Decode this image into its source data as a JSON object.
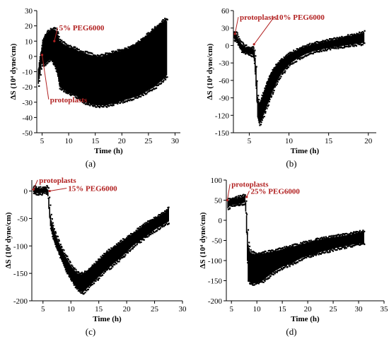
{
  "chart_data": [
    {
      "type": "scatter",
      "panel_label": "(a)",
      "xlabel": "Time (h)",
      "ylabel": "ΔS (10⁴ dyne/cm)",
      "xlim": [
        4,
        31
      ],
      "ylim": [
        -50,
        30
      ],
      "xticks": [
        5,
        10,
        15,
        20,
        25,
        30
      ],
      "yticks": [
        -50,
        -40,
        -30,
        -20,
        -10,
        0,
        10,
        20,
        30
      ],
      "grid": false,
      "color": "#000000",
      "annotations": [
        {
          "text": "5% PEG6000",
          "x": 8.2,
          "y": 17,
          "arrow_to": [
            7.3,
            10
          ]
        },
        {
          "text": "protoplasts",
          "x": 6.5,
          "y": -30,
          "arrow_to": [
            5.0,
            1
          ]
        }
      ],
      "x": [
        4.2,
        4.5,
        4.8,
        5.0,
        5.5,
        6.0,
        6.5,
        7.0,
        7.5,
        7.8,
        8.2,
        9,
        10,
        11,
        12,
        13,
        14,
        15,
        16,
        17,
        18,
        19,
        20,
        21,
        22,
        23,
        24,
        25,
        26,
        27,
        28,
        28.4
      ],
      "y_upper": [
        -8,
        0,
        5,
        10,
        14,
        16,
        17,
        18,
        17,
        15,
        10,
        8,
        6,
        5,
        3,
        2,
        1,
        0,
        0,
        1,
        2,
        3,
        4,
        5,
        7,
        9,
        12,
        15,
        18,
        21,
        24,
        23
      ],
      "y_lower": [
        -18,
        -12,
        -5,
        -5,
        -5,
        -3,
        -2,
        -4,
        -8,
        -12,
        -20,
        -22,
        -24,
        -25,
        -28,
        -30,
        -31,
        -32,
        -32,
        -32,
        -31,
        -30,
        -29,
        -28,
        -27,
        -26,
        -24,
        -22,
        -20,
        -17,
        -14,
        -12
      ]
    },
    {
      "type": "scatter",
      "panel_label": "(b)",
      "xlabel": "Time (h)",
      "ylabel": "ΔS (10⁴ dyne/cm)",
      "xlim": [
        3,
        21
      ],
      "ylim": [
        -150,
        60
      ],
      "xticks": [
        5,
        10,
        15,
        20
      ],
      "yticks": [
        -150,
        -120,
        -90,
        -60,
        -30,
        0,
        30,
        60
      ],
      "grid": false,
      "color": "#000000",
      "annotations": [
        {
          "text": "protoplasts",
          "x": 3.8,
          "y": 44,
          "arrow_to": [
            3.2,
            20
          ]
        },
        {
          "text": "10% PEG6000",
          "x": 8.3,
          "y": 44,
          "arrow_to": [
            5.6,
            2
          ]
        }
      ],
      "x": [
        3.0,
        3.3,
        3.6,
        4.0,
        4.5,
        5.0,
        5.4,
        5.6,
        5.8,
        6.0,
        6.2,
        6.5,
        7.0,
        7.5,
        8.0,
        8.5,
        9,
        10,
        11,
        12,
        13,
        14,
        15,
        16,
        17,
        18,
        19,
        19.4
      ],
      "y_upper": [
        22,
        20,
        10,
        2,
        -3,
        -5,
        -5,
        -10,
        -40,
        -90,
        -100,
        -90,
        -70,
        -52,
        -40,
        -32,
        -25,
        -15,
        -8,
        -2,
        2,
        5,
        8,
        11,
        14,
        17,
        20,
        22
      ],
      "y_lower": [
        12,
        8,
        0,
        -10,
        -12,
        -15,
        -16,
        -30,
        -75,
        -125,
        -135,
        -128,
        -110,
        -92,
        -75,
        -60,
        -48,
        -32,
        -22,
        -15,
        -10,
        -7,
        -4,
        -2,
        0,
        2,
        4,
        5
      ]
    },
    {
      "type": "scatter",
      "panel_label": "(c)",
      "xlabel": "Time (h)",
      "ylabel": "ΔS (10⁴ dyne/cm)",
      "xlim": [
        3,
        30
      ],
      "ylim": [
        -200,
        20
      ],
      "xticks": [
        5,
        10,
        15,
        20,
        25,
        30
      ],
      "yticks": [
        -200,
        -150,
        -100,
        -50,
        0
      ],
      "grid": false,
      "color": "#000000",
      "annotations": [
        {
          "text": "protoplasts",
          "x": 4.3,
          "y": 15,
          "arrow_to": [
            3.3,
            3
          ]
        },
        {
          "text": "15% PEG6000",
          "x": 9.5,
          "y": 0,
          "arrow_to": [
            6.2,
            0
          ]
        }
      ],
      "x": [
        3.2,
        3.5,
        4,
        4.5,
        5,
        5.5,
        5.8,
        6.0,
        6.3,
        6.7,
        7,
        8,
        9,
        10,
        11,
        12,
        13,
        14,
        15,
        16,
        17,
        18,
        19,
        20,
        21,
        22,
        23,
        24,
        25,
        26,
        27,
        27.5
      ],
      "y_upper": [
        8,
        5,
        4,
        4,
        5,
        6,
        2,
        -20,
        -50,
        -65,
        -75,
        -100,
        -120,
        -138,
        -150,
        -152,
        -145,
        -135,
        -125,
        -115,
        -107,
        -100,
        -92,
        -85,
        -78,
        -70,
        -62,
        -56,
        -50,
        -44,
        -37,
        -30
      ],
      "y_lower": [
        -2,
        -4,
        -4,
        -4,
        -2,
        -2,
        -10,
        -40,
        -70,
        -85,
        -95,
        -120,
        -145,
        -162,
        -178,
        -185,
        -175,
        -165,
        -155,
        -145,
        -137,
        -128,
        -120,
        -110,
        -100,
        -92,
        -85,
        -78,
        -70,
        -64,
        -58,
        -55
      ]
    },
    {
      "type": "scatter",
      "panel_label": "(d)",
      "xlabel": "Time (h)",
      "ylabel": "ΔS (10⁴ dyne/cm)",
      "xlim": [
        4,
        35
      ],
      "ylim": [
        -200,
        100
      ],
      "xticks": [
        5,
        10,
        15,
        20,
        25,
        30,
        35
      ],
      "yticks": [
        -200,
        -150,
        -100,
        -50,
        0,
        50,
        100
      ],
      "grid": false,
      "color": "#000000",
      "annotations": [
        {
          "text": "protoplasts",
          "x": 5.0,
          "y": 83,
          "arrow_to": [
            4.2,
            50
          ]
        },
        {
          "text": "25% PEG6000",
          "x": 8.8,
          "y": 66,
          "arrow_to": [
            8.0,
            58
          ]
        }
      ],
      "x": [
        4.2,
        4.5,
        5,
        6,
        7,
        7.6,
        7.8,
        8.0,
        8.2,
        8.6,
        9,
        10,
        11,
        12,
        13,
        14,
        15,
        16,
        17,
        18,
        19,
        20,
        21,
        22,
        23,
        24,
        25,
        26,
        27,
        28,
        29,
        30,
        31
      ],
      "y_upper": [
        50,
        50,
        52,
        55,
        58,
        62,
        30,
        -20,
        -60,
        -80,
        -82,
        -85,
        -83,
        -80,
        -78,
        -75,
        -72,
        -68,
        -65,
        -62,
        -58,
        -55,
        -52,
        -49,
        -46,
        -44,
        -42,
        -40,
        -38,
        -36,
        -33,
        -30,
        -28
      ],
      "y_lower": [
        30,
        35,
        38,
        40,
        42,
        45,
        0,
        -90,
        -150,
        -155,
        -158,
        -155,
        -150,
        -140,
        -130,
        -122,
        -115,
        -110,
        -105,
        -98,
        -92,
        -88,
        -85,
        -80,
        -77,
        -74,
        -70,
        -67,
        -65,
        -62,
        -60,
        -58,
        -56
      ]
    }
  ]
}
